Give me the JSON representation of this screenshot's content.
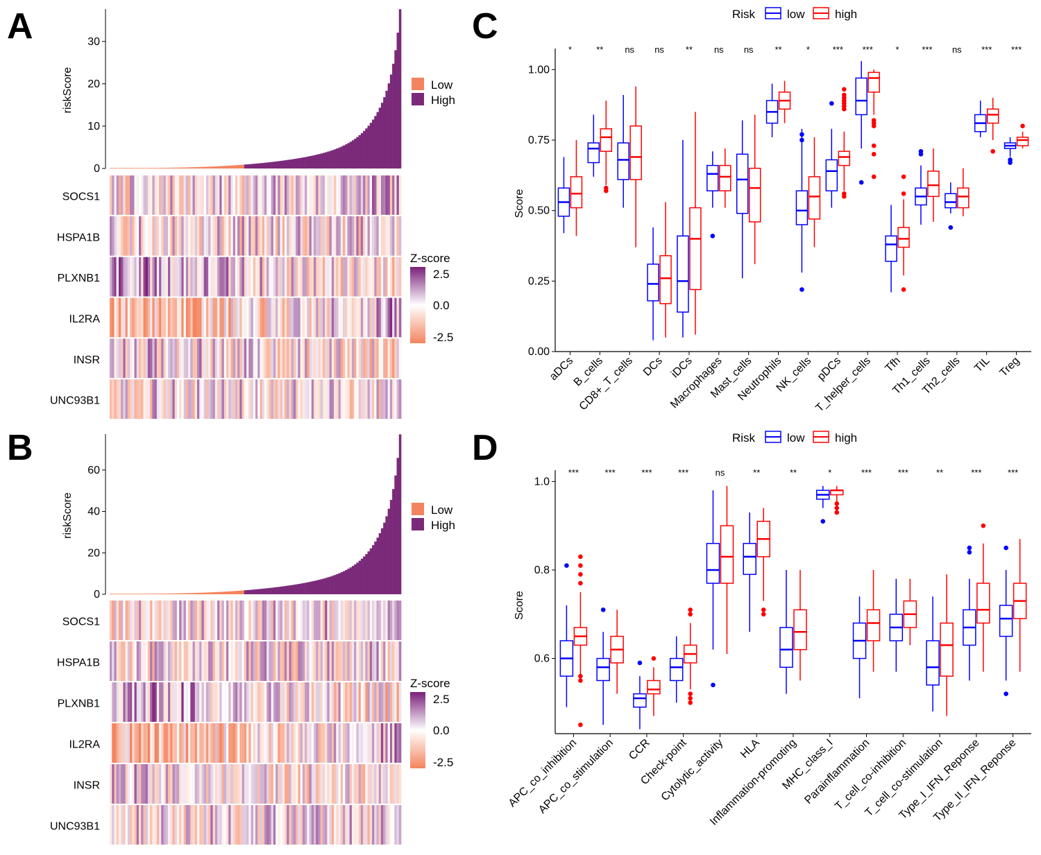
{
  "panels": {
    "a": "A",
    "b": "B",
    "c": "C",
    "d": "D"
  },
  "colors": {
    "low_box": "#0000FF",
    "high_box": "#FF0000",
    "low_bar": "#F4845F",
    "high_bar": "#7B2A7A",
    "heat_low": "#F4845F",
    "heat_mid": "#FFFFFF",
    "heat_high": "#7A1F7A"
  },
  "heatmap_legend": {
    "group_low": "Low",
    "group_high": "High",
    "zscore_title": "Z-score",
    "z_ticks": [
      "2.5",
      "0.0",
      "-2.5"
    ]
  },
  "box_legend": {
    "title": "Risk",
    "low": "low",
    "high": "high"
  },
  "chart_data": [
    {
      "id": "A",
      "type": "heatmap",
      "title": "",
      "ylabel": "riskScore",
      "yticks": [
        "0",
        "10",
        "20",
        "30"
      ],
      "ylim": [
        0,
        37
      ],
      "n_samples": 130,
      "n_low": 60,
      "risk_max": 37.5,
      "genes": [
        "SOCS1",
        "HSPA1B",
        "PLXNB1",
        "IL2RA",
        "INSR",
        "UNC93B1"
      ]
    },
    {
      "id": "B",
      "type": "heatmap",
      "title": "",
      "ylabel": "riskScore",
      "yticks": [
        "0",
        "20",
        "40",
        "60"
      ],
      "ylim": [
        0,
        76
      ],
      "n_samples": 130,
      "n_low": 60,
      "risk_max": 77,
      "genes": [
        "SOCS1",
        "HSPA1B",
        "PLXNB1",
        "IL2RA",
        "INSR",
        "UNC93B1"
      ]
    },
    {
      "id": "C",
      "type": "box",
      "title": "",
      "xlabel": "",
      "ylabel": "Score",
      "ylim": [
        0,
        1.05
      ],
      "yticks": [
        "0.00",
        "0.25",
        "0.50",
        "0.75",
        "1.00"
      ],
      "categories": [
        "aDCs",
        "B_cells",
        "CD8+_T_cells",
        "DCs",
        "iDCs",
        "Macrophages",
        "Mast_cells",
        "Neutrophils",
        "NK_cells",
        "pDCs",
        "T_helper_cells",
        "Tfh",
        "Th1_cells",
        "Th2_cells",
        "TIL",
        "Treg"
      ],
      "significance": [
        "*",
        "**",
        "ns",
        "ns",
        "**",
        "ns",
        "ns",
        "**",
        "*",
        "***",
        "***",
        "*",
        "***",
        "ns",
        "***",
        "***"
      ],
      "series": [
        {
          "name": "low",
          "stats": [
            [
              0.42,
              0.48,
              0.53,
              0.58,
              0.69
            ],
            [
              0.62,
              0.67,
              0.72,
              0.74,
              0.84
            ],
            [
              0.51,
              0.61,
              0.68,
              0.74,
              0.91
            ],
            [
              0.04,
              0.18,
              0.24,
              0.31,
              0.44
            ],
            [
              0.05,
              0.14,
              0.25,
              0.41,
              0.75
            ],
            [
              0.51,
              0.57,
              0.63,
              0.66,
              0.71
            ],
            [
              0.26,
              0.49,
              0.61,
              0.7,
              0.82
            ],
            [
              0.76,
              0.81,
              0.85,
              0.89,
              0.95
            ],
            [
              0.28,
              0.45,
              0.5,
              0.57,
              0.79
            ],
            [
              0.51,
              0.57,
              0.64,
              0.68,
              0.79
            ],
            [
              0.72,
              0.84,
              0.89,
              0.97,
              1.03
            ],
            [
              0.21,
              0.32,
              0.38,
              0.41,
              0.52
            ],
            [
              0.45,
              0.52,
              0.55,
              0.58,
              0.66
            ],
            [
              0.49,
              0.51,
              0.53,
              0.56,
              0.6
            ],
            [
              0.76,
              0.78,
              0.81,
              0.84,
              0.89
            ],
            [
              0.69,
              0.72,
              0.73,
              0.74,
              0.76
            ]
          ],
          "outliers": [
            [],
            [],
            [],
            [],
            [],
            [
              0.41
            ],
            [],
            [],
            [
              0.22,
              0.75,
              0.77
            ],
            [
              0.88
            ],
            [
              0.6
            ],
            [],
            [
              0.7,
              0.71
            ],
            [
              0.44
            ],
            [],
            [
              0.67,
              0.68
            ]
          ]
        },
        {
          "name": "high",
          "stats": [
            [
              0.41,
              0.51,
              0.56,
              0.62,
              0.75
            ],
            [
              0.59,
              0.71,
              0.76,
              0.79,
              0.89
            ],
            [
              0.37,
              0.61,
              0.69,
              0.8,
              0.94
            ],
            [
              0.05,
              0.17,
              0.26,
              0.34,
              0.53
            ],
            [
              0.06,
              0.22,
              0.4,
              0.51,
              0.85
            ],
            [
              0.51,
              0.57,
              0.62,
              0.66,
              0.72
            ],
            [
              0.31,
              0.46,
              0.58,
              0.65,
              0.84
            ],
            [
              0.81,
              0.86,
              0.89,
              0.92,
              0.96
            ],
            [
              0.37,
              0.47,
              0.55,
              0.62,
              0.76
            ],
            [
              0.57,
              0.66,
              0.69,
              0.71,
              0.78
            ],
            [
              0.84,
              0.92,
              0.97,
              0.99,
              1.0
            ],
            [
              0.27,
              0.37,
              0.4,
              0.44,
              0.54
            ],
            [
              0.46,
              0.55,
              0.59,
              0.64,
              0.72
            ],
            [
              0.48,
              0.51,
              0.55,
              0.58,
              0.65
            ],
            [
              0.75,
              0.81,
              0.84,
              0.86,
              0.9
            ],
            [
              0.72,
              0.73,
              0.75,
              0.76,
              0.78
            ]
          ],
          "outliers": [
            [],
            [
              0.57,
              0.58
            ],
            [],
            [],
            [],
            [],
            [],
            [],
            [],
            [
              0.55,
              0.56,
              0.86,
              0.87,
              0.88,
              0.89,
              0.9,
              0.91,
              0.93
            ],
            [
              0.62,
              0.7,
              0.73,
              0.8,
              0.81,
              0.82
            ],
            [
              0.22,
              0.56,
              0.62
            ],
            [],
            [],
            [
              0.71
            ],
            [
              0.8
            ]
          ]
        }
      ]
    },
    {
      "id": "D",
      "type": "box",
      "title": "",
      "xlabel": "",
      "ylabel": "Score",
      "ylim": [
        0.43,
        1.01
      ],
      "yticks": [
        "0.6",
        "0.8",
        "1.0"
      ],
      "categories": [
        "APC_co_inhibition",
        "APC_co_stimulation",
        "CCR",
        "Check-point",
        "Cytolytic_activity",
        "HLA",
        "Inflammation-promoting",
        "MHC_class_I",
        "Parainflammation",
        "T_cell_co-inhibition",
        "T_cell_co-stimulation",
        "Type_I_IFN_Reponse",
        "Type_II_IFN_Reponse"
      ],
      "significance": [
        "***",
        "***",
        "***",
        "***",
        "ns",
        "**",
        "**",
        "*",
        "***",
        "***",
        "**",
        "***",
        "***"
      ],
      "series": [
        {
          "name": "low",
          "stats": [
            [
              0.49,
              0.56,
              0.6,
              0.64,
              0.72
            ],
            [
              0.45,
              0.55,
              0.58,
              0.6,
              0.66
            ],
            [
              0.44,
              0.49,
              0.51,
              0.52,
              0.56
            ],
            [
              0.5,
              0.55,
              0.58,
              0.6,
              0.65
            ],
            [
              0.62,
              0.77,
              0.8,
              0.86,
              0.98
            ],
            [
              0.66,
              0.79,
              0.83,
              0.86,
              0.93
            ],
            [
              0.52,
              0.58,
              0.62,
              0.67,
              0.8
            ],
            [
              0.94,
              0.96,
              0.97,
              0.98,
              0.99
            ],
            [
              0.51,
              0.6,
              0.64,
              0.68,
              0.74
            ],
            [
              0.57,
              0.64,
              0.67,
              0.7,
              0.78
            ],
            [
              0.48,
              0.54,
              0.58,
              0.64,
              0.74
            ],
            [
              0.55,
              0.63,
              0.67,
              0.71,
              0.78
            ],
            [
              0.55,
              0.65,
              0.69,
              0.72,
              0.8
            ]
          ],
          "outliers": [
            [
              0.81
            ],
            [
              0.71
            ],
            [
              0.59
            ],
            [],
            [
              0.54
            ],
            [],
            [],
            [
              0.91
            ],
            [],
            [],
            [],
            [
              0.84,
              0.85
            ],
            [
              0.52,
              0.85
            ]
          ]
        },
        {
          "name": "high",
          "stats": [
            [
              0.56,
              0.63,
              0.65,
              0.67,
              0.75
            ],
            [
              0.52,
              0.59,
              0.62,
              0.65,
              0.71
            ],
            [
              0.47,
              0.52,
              0.53,
              0.55,
              0.58
            ],
            [
              0.53,
              0.59,
              0.61,
              0.63,
              0.68
            ],
            [
              0.61,
              0.77,
              0.83,
              0.9,
              0.99
            ],
            [
              0.73,
              0.83,
              0.87,
              0.91,
              0.94
            ],
            [
              0.55,
              0.62,
              0.66,
              0.71,
              0.8
            ],
            [
              0.95,
              0.97,
              0.98,
              0.98,
              0.99
            ],
            [
              0.57,
              0.64,
              0.68,
              0.71,
              0.8
            ],
            [
              0.63,
              0.67,
              0.7,
              0.73,
              0.78
            ],
            [
              0.47,
              0.56,
              0.63,
              0.68,
              0.79
            ],
            [
              0.57,
              0.68,
              0.71,
              0.77,
              0.86
            ],
            [
              0.57,
              0.69,
              0.73,
              0.77,
              0.87
            ]
          ],
          "outliers": [
            [
              0.45,
              0.55,
              0.56,
              0.77,
              0.79,
              0.81,
              0.83
            ],
            [],
            [
              0.6
            ],
            [
              0.5,
              0.51,
              0.52,
              0.7,
              0.71
            ],
            [],
            [
              0.7,
              0.71
            ],
            [],
            [
              0.93,
              0.94,
              0.95
            ],
            [],
            [],
            [],
            [
              0.9
            ],
            []
          ]
        }
      ]
    }
  ]
}
